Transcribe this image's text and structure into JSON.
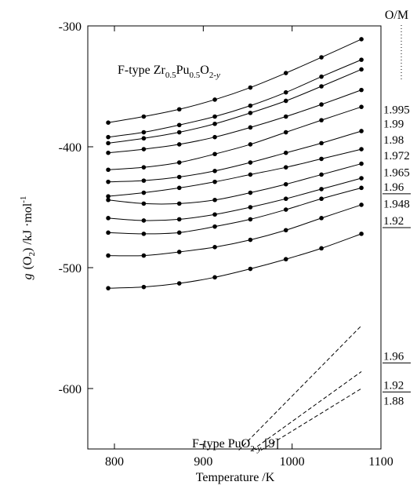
{
  "chart_data": {
    "type": "line",
    "title": "",
    "xlabel": "Temperature /K",
    "ylabel_parts": {
      "main": "g",
      "sub": "(O",
      "sub_index": "2",
      "rest": ") /kJ ·mol",
      "sup": "-1"
    },
    "xlim": [
      770,
      1100
    ],
    "ylim": [
      -650,
      -300
    ],
    "xticks": [
      800,
      900,
      1000,
      1100
    ],
    "yticks": [
      -300,
      -400,
      -500,
      -600
    ],
    "grid": false,
    "legend": "none",
    "x_measured": [
      793,
      833,
      873,
      913,
      953,
      993,
      1033,
      1078
    ],
    "series": [
      {
        "om": "1.995",
        "values": [
          -380,
          -375,
          -369,
          -361,
          -351,
          -339,
          -326,
          -311
        ]
      },
      {
        "om": "1.99",
        "values": [
          -392,
          -388,
          -382,
          -375,
          -366,
          -355,
          -342,
          -328
        ]
      },
      {
        "om": "1.99",
        "values": [
          -397,
          -393,
          -388,
          -381,
          -372,
          -362,
          -350,
          -336
        ]
      },
      {
        "om": "1.98",
        "values": [
          -405,
          -402,
          -398,
          -392,
          -384,
          -375,
          -365,
          -353
        ]
      },
      {
        "om": "1.98",
        "values": [
          -419,
          -417,
          -413,
          -406,
          -398,
          -388,
          -378,
          -367
        ]
      },
      {
        "om": "1.972",
        "values": [
          -429,
          -428,
          -425,
          -420,
          -413,
          -405,
          -397,
          -387
        ]
      },
      {
        "om": "1.965",
        "values": [
          -441,
          -438,
          -434,
          -429,
          -423,
          -417,
          -410,
          -402
        ]
      },
      {
        "om": "1.96",
        "values": [
          -444,
          -447,
          -447,
          -444,
          -438,
          -431,
          -423,
          -414
        ]
      },
      {
        "om": "1.948",
        "values": [
          -459,
          -461,
          -460,
          -456,
          -450,
          -443,
          -435,
          -426
        ]
      },
      {
        "om": "1.92",
        "values": [
          -471,
          -472,
          -471,
          -466,
          -460,
          -452,
          -443,
          -434
        ]
      },
      {
        "om": "1.92",
        "values": [
          -490,
          -490,
          -487,
          -483,
          -477,
          -469,
          -459,
          -448
        ]
      },
      {
        "om": "",
        "values": [
          -517,
          -516,
          -513,
          -508,
          -501,
          -493,
          -484,
          -472
        ]
      }
    ],
    "reference_lines": [
      {
        "om": "1.96",
        "x": [
          940,
          1078
        ],
        "y": [
          -651,
          -548
        ]
      },
      {
        "om": "1.92",
        "x": [
          955,
          1078
        ],
        "y": [
          -651,
          -586
        ]
      },
      {
        "om": "1.88",
        "x": [
          965,
          1078
        ],
        "y": [
          -651,
          -600
        ]
      }
    ],
    "om_header": "O/M",
    "right_labels_top": [
      {
        "text": "1.995",
        "y": -369,
        "underline": false
      },
      {
        "text": "1.99",
        "y": -381,
        "underline": false
      },
      {
        "text": "1.98",
        "y": -394,
        "underline": false
      },
      {
        "text": "1.972",
        "y": -407,
        "underline": false
      },
      {
        "text": "1.965",
        "y": -421,
        "underline": false
      },
      {
        "text": "1.96",
        "y": -433,
        "underline": true
      },
      {
        "text": "1.948",
        "y": -447,
        "underline": false
      },
      {
        "text": "1.92",
        "y": -461,
        "underline": true
      }
    ],
    "right_labels_bottom": [
      {
        "text": "1.96",
        "y": -573,
        "underline": true
      },
      {
        "text": "1.92",
        "y": -597,
        "underline": true
      },
      {
        "text": "1.88",
        "y": -610,
        "underline": false
      }
    ],
    "annotation_top": {
      "pre": "F-type Zr",
      "s1": "0.5",
      "mid": "Pu",
      "s2": "0.5",
      "mid2": "O",
      "s3": "2-",
      "s3i": "y"
    },
    "annotation_bottom": {
      "pre": "F-type PuO",
      "s1": "2-",
      "s1i": "y",
      "post": " [9]"
    }
  }
}
